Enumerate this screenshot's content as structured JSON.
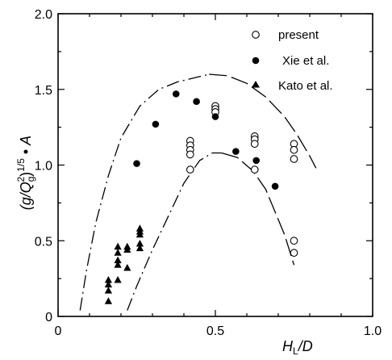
{
  "chart_data": {
    "type": "scatter",
    "xlabel_main": "H",
    "xlabel_sub": "L",
    "xlabel_tail": "/D",
    "ylabel": {
      "pre": "(g/Q",
      "sub1": "g",
      "sup1": "2",
      "mid": ")",
      "sup2": "1/5",
      "dot": " • ",
      "tail": "A"
    },
    "xlim": [
      0,
      1.0
    ],
    "ylim": [
      0,
      2.0
    ],
    "xticks": [
      {
        "value": 0,
        "label": "0"
      },
      {
        "value": 0.5,
        "label": "0.5"
      },
      {
        "value": 1.0,
        "label": "1.0"
      }
    ],
    "yticks": [
      {
        "value": 0,
        "label": "0"
      },
      {
        "value": 0.5,
        "label": "0.5"
      },
      {
        "value": 1.0,
        "label": "1.0"
      },
      {
        "value": 1.5,
        "label": "1.5"
      },
      {
        "value": 2.0,
        "label": "2.0"
      }
    ],
    "grid": false,
    "legend_position": "top-right",
    "series": [
      {
        "name": "present",
        "marker": "open-circle",
        "points": [
          [
            0.42,
            1.16
          ],
          [
            0.42,
            1.13
          ],
          [
            0.42,
            1.1
          ],
          [
            0.42,
            1.07
          ],
          [
            0.42,
            0.97
          ],
          [
            0.5,
            1.39
          ],
          [
            0.5,
            1.37
          ],
          [
            0.5,
            1.35
          ],
          [
            0.625,
            1.19
          ],
          [
            0.625,
            1.17
          ],
          [
            0.625,
            1.14
          ],
          [
            0.625,
            0.97
          ],
          [
            0.75,
            1.14
          ],
          [
            0.75,
            1.1
          ],
          [
            0.75,
            1.04
          ],
          [
            0.75,
            0.5
          ],
          [
            0.75,
            0.42
          ]
        ]
      },
      {
        "name": "Xie et al.",
        "marker": "filled-circle",
        "points": [
          [
            0.25,
            1.01
          ],
          [
            0.31,
            1.27
          ],
          [
            0.375,
            1.47
          ],
          [
            0.44,
            1.42
          ],
          [
            0.5,
            1.32
          ],
          [
            0.565,
            1.09
          ],
          [
            0.63,
            1.03
          ],
          [
            0.69,
            0.86
          ]
        ]
      },
      {
        "name": "Kato et al.",
        "marker": "filled-triangle",
        "points": [
          [
            0.16,
            0.24
          ],
          [
            0.16,
            0.21
          ],
          [
            0.16,
            0.17
          ],
          [
            0.16,
            0.1
          ],
          [
            0.19,
            0.46
          ],
          [
            0.19,
            0.42
          ],
          [
            0.19,
            0.37
          ],
          [
            0.19,
            0.34
          ],
          [
            0.19,
            0.24
          ],
          [
            0.22,
            0.46
          ],
          [
            0.22,
            0.44
          ],
          [
            0.22,
            0.32
          ],
          [
            0.26,
            0.58
          ],
          [
            0.26,
            0.56
          ],
          [
            0.26,
            0.54
          ],
          [
            0.26,
            0.48
          ],
          [
            0.26,
            0.45
          ]
        ]
      }
    ],
    "envelope_curves": [
      {
        "style": "dash-dot",
        "points": [
          [
            0.07,
            0.04
          ],
          [
            0.09,
            0.3
          ],
          [
            0.12,
            0.62
          ],
          [
            0.16,
            0.93
          ],
          [
            0.2,
            1.18
          ],
          [
            0.26,
            1.39
          ],
          [
            0.32,
            1.5
          ],
          [
            0.38,
            1.55
          ],
          [
            0.44,
            1.58
          ],
          [
            0.48,
            1.6
          ]
        ]
      },
      {
        "style": "long-dash",
        "points": [
          [
            0.48,
            1.6
          ],
          [
            0.54,
            1.59
          ],
          [
            0.6,
            1.54
          ],
          [
            0.66,
            1.45
          ],
          [
            0.72,
            1.32
          ],
          [
            0.76,
            1.2
          ],
          [
            0.8,
            1.06
          ],
          [
            0.82,
            0.98
          ]
        ]
      },
      {
        "style": "dash-dot",
        "points": [
          [
            0.22,
            0.04
          ],
          [
            0.25,
            0.2
          ],
          [
            0.3,
            0.44
          ],
          [
            0.35,
            0.66
          ],
          [
            0.4,
            0.88
          ],
          [
            0.45,
            1.03
          ],
          [
            0.49,
            1.08
          ],
          [
            0.52,
            1.08
          ]
        ]
      },
      {
        "style": "long-dash",
        "points": [
          [
            0.52,
            1.08
          ],
          [
            0.57,
            1.05
          ],
          [
            0.62,
            0.96
          ],
          [
            0.66,
            0.84
          ],
          [
            0.7,
            0.64
          ],
          [
            0.72,
            0.54
          ],
          [
            0.75,
            0.34
          ]
        ]
      }
    ]
  }
}
